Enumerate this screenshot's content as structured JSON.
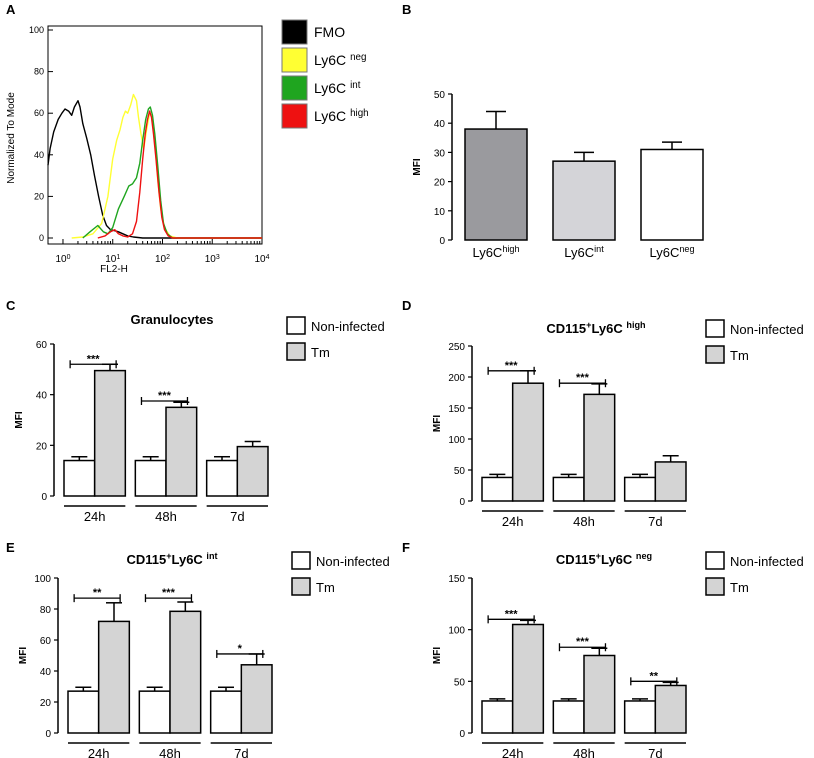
{
  "chart_data": [
    {
      "panel": "A",
      "type": "line",
      "title": "",
      "xlabel": "FL2-H",
      "ylabel": "Normalized To Mode",
      "xscale": "log",
      "xlim": [
        0.5,
        10000
      ],
      "ylim": [
        0,
        100
      ],
      "yticks": [
        0,
        20,
        40,
        60,
        80,
        100
      ],
      "xticks": [
        {
          "base": "10",
          "exp": "0",
          "value": 1
        },
        {
          "base": "10",
          "exp": "1",
          "value": 10
        },
        {
          "base": "10",
          "exp": "2",
          "value": 100
        },
        {
          "base": "10",
          "exp": "3",
          "value": 1000
        },
        {
          "base": "10",
          "exp": "4",
          "value": 10000
        }
      ],
      "legend": [
        {
          "base": "FMO",
          "sup": "",
          "color": "#000000"
        },
        {
          "base": "Ly6C ",
          "sup": "neg",
          "color": "#ffff33"
        },
        {
          "base": "Ly6C ",
          "sup": "int",
          "color": "#1fa51f"
        },
        {
          "base": "Ly6C ",
          "sup": "high",
          "color": "#ee1111"
        }
      ],
      "series": [
        {
          "name": "FMO",
          "color": "#000000",
          "points": [
            [
              0.5,
              35
            ],
            [
              0.55,
              43
            ],
            [
              0.65,
              51
            ],
            [
              0.8,
              57
            ],
            [
              0.95,
              60
            ],
            [
              1.1,
              62
            ],
            [
              1.3,
              61
            ],
            [
              1.5,
              59
            ],
            [
              1.7,
              63
            ],
            [
              2.0,
              66
            ],
            [
              2.2,
              63
            ],
            [
              2.5,
              55
            ],
            [
              3.0,
              48
            ],
            [
              3.6,
              40
            ],
            [
              4.3,
              30
            ],
            [
              5.2,
              20
            ],
            [
              6.3,
              11
            ],
            [
              7.5,
              6
            ],
            [
              9,
              4
            ],
            [
              11,
              3.5
            ],
            [
              13,
              3
            ],
            [
              16,
              2
            ],
            [
              20,
              1
            ],
            [
              26,
              0.5
            ],
            [
              40,
              0
            ],
            [
              10000,
              0
            ]
          ]
        },
        {
          "name": "Ly6C neg",
          "color": "#ffff33",
          "points": [
            [
              1.5,
              0
            ],
            [
              2.5,
              0.5
            ],
            [
              4,
              2
            ],
            [
              6,
              7
            ],
            [
              8,
              20
            ],
            [
              10,
              38
            ],
            [
              12,
              47
            ],
            [
              14,
              52
            ],
            [
              16,
              58
            ],
            [
              18,
              61
            ],
            [
              20,
              60
            ],
            [
              23,
              64
            ],
            [
              26,
              69
            ],
            [
              30,
              66
            ],
            [
              33,
              58
            ],
            [
              37,
              50
            ],
            [
              42,
              43
            ],
            [
              48,
              52
            ],
            [
              55,
              60
            ],
            [
              62,
              58
            ],
            [
              70,
              46
            ],
            [
              80,
              28
            ],
            [
              92,
              14
            ],
            [
              110,
              5
            ],
            [
              140,
              1
            ],
            [
              200,
              0
            ],
            [
              10000,
              0
            ]
          ]
        },
        {
          "name": "Ly6C int",
          "color": "#1fa51f",
          "points": [
            [
              2.5,
              0
            ],
            [
              3.5,
              3
            ],
            [
              5,
              6
            ],
            [
              6.5,
              3
            ],
            [
              8,
              2
            ],
            [
              10,
              5
            ],
            [
              13,
              14
            ],
            [
              17,
              20
            ],
            [
              21,
              25
            ],
            [
              25,
              26
            ],
            [
              30,
              29
            ],
            [
              35,
              36
            ],
            [
              40,
              47
            ],
            [
              46,
              57
            ],
            [
              52,
              62
            ],
            [
              57,
              63
            ],
            [
              63,
              59
            ],
            [
              70,
              50
            ],
            [
              80,
              35
            ],
            [
              92,
              18
            ],
            [
              105,
              7
            ],
            [
              125,
              2
            ],
            [
              160,
              0
            ],
            [
              10000,
              0
            ]
          ]
        },
        {
          "name": "Ly6C high",
          "color": "#ee1111",
          "points": [
            [
              5,
              0
            ],
            [
              7,
              1
            ],
            [
              9,
              3
            ],
            [
              11,
              4
            ],
            [
              13,
              2
            ],
            [
              16,
              1
            ],
            [
              20,
              0.5
            ],
            [
              25,
              2
            ],
            [
              30,
              8
            ],
            [
              35,
              22
            ],
            [
              40,
              38
            ],
            [
              45,
              50
            ],
            [
              50,
              57
            ],
            [
              55,
              61
            ],
            [
              60,
              58
            ],
            [
              66,
              50
            ],
            [
              74,
              38
            ],
            [
              85,
              22
            ],
            [
              97,
              10
            ],
            [
              110,
              4
            ],
            [
              130,
              1
            ],
            [
              160,
              0
            ],
            [
              10000,
              0
            ]
          ]
        }
      ]
    },
    {
      "panel": "B",
      "type": "bar",
      "title": "",
      "ylabel": "MFI",
      "ylim": [
        0,
        50
      ],
      "yticks": [
        0,
        10,
        20,
        30,
        40,
        50
      ],
      "categories": [
        {
          "base": "Ly6C",
          "sup": "high"
        },
        {
          "base": "Ly6C",
          "sup": "int"
        },
        {
          "base": "Ly6C",
          "sup": "neg"
        }
      ],
      "values": [
        38,
        27,
        31
      ],
      "errors": [
        6,
        3,
        2.5
      ],
      "colors": [
        "#9a9a9e",
        "#d4d4d8",
        "#ffffff"
      ]
    },
    {
      "panel": "C",
      "type": "bar",
      "title": "Granulocytes",
      "title_sup": "",
      "ylabel": "MFI",
      "ylim": [
        0,
        60
      ],
      "yticks": [
        0,
        20,
        40,
        60
      ],
      "categories": [
        "24h",
        "48h",
        "7d"
      ],
      "series": [
        {
          "name": "Non-infected",
          "values": [
            14,
            14,
            14
          ],
          "errors": [
            1.5,
            1.5,
            1.5
          ],
          "color": "#ffffff"
        },
        {
          "name": "Tm",
          "values": [
            49.5,
            35,
            19.5
          ],
          "errors": [
            2.5,
            2,
            2
          ],
          "color": "#d4d4d4"
        }
      ],
      "significance": [
        "***",
        "***",
        ""
      ],
      "sig_levels": [
        52,
        37.5,
        0
      ]
    },
    {
      "panel": "D",
      "type": "bar",
      "title": "CD115",
      "title_sup": "+",
      "title_mid": "Ly6C ",
      "title_sup2": "high",
      "ylabel": "MFI",
      "ylim": [
        0,
        250
      ],
      "yticks": [
        0,
        50,
        100,
        150,
        200,
        250
      ],
      "categories": [
        "24h",
        "48h",
        "7d"
      ],
      "series": [
        {
          "name": "Non-infected",
          "values": [
            38,
            38,
            38
          ],
          "errors": [
            5,
            5,
            5
          ],
          "color": "#ffffff"
        },
        {
          "name": "Tm",
          "values": [
            190,
            172,
            63
          ],
          "errors": [
            20,
            17,
            10
          ],
          "color": "#d4d4d4"
        }
      ],
      "significance": [
        "***",
        "***",
        ""
      ],
      "sig_levels": [
        210,
        190,
        0
      ]
    },
    {
      "panel": "E",
      "type": "bar",
      "title": "CD115",
      "title_sup": "+",
      "title_mid": "Ly6C ",
      "title_sup2": "int",
      "ylabel": "MFI",
      "ylim": [
        0,
        100
      ],
      "yticks": [
        0,
        20,
        40,
        60,
        80,
        100
      ],
      "categories": [
        "24h",
        "48h",
        "7d"
      ],
      "series": [
        {
          "name": "Non-infected",
          "values": [
            27,
            27,
            27
          ],
          "errors": [
            2.5,
            2.5,
            2.5
          ],
          "color": "#ffffff"
        },
        {
          "name": "Tm",
          "values": [
            72,
            78.5,
            44
          ],
          "errors": [
            12,
            6,
            7
          ],
          "color": "#d4d4d4"
        }
      ],
      "significance": [
        "**",
        "***",
        "*"
      ],
      "sig_levels": [
        87,
        87,
        51
      ]
    },
    {
      "panel": "F",
      "type": "bar",
      "title": "CD115",
      "title_sup": "+",
      "title_mid": "Ly6C ",
      "title_sup2": "neg",
      "ylabel": "MFI",
      "ylim": [
        0,
        150
      ],
      "yticks": [
        0,
        50,
        100,
        150
      ],
      "categories": [
        "24h",
        "48h",
        "7d"
      ],
      "series": [
        {
          "name": "Non-infected",
          "values": [
            31,
            31,
            31
          ],
          "errors": [
            2,
            2,
            2
          ],
          "color": "#ffffff"
        },
        {
          "name": "Tm",
          "values": [
            105,
            75,
            46
          ],
          "errors": [
            4,
            7,
            3
          ],
          "color": "#d4d4d4"
        }
      ],
      "significance": [
        "***",
        "***",
        "**"
      ],
      "sig_levels": [
        110,
        83,
        50
      ]
    }
  ]
}
